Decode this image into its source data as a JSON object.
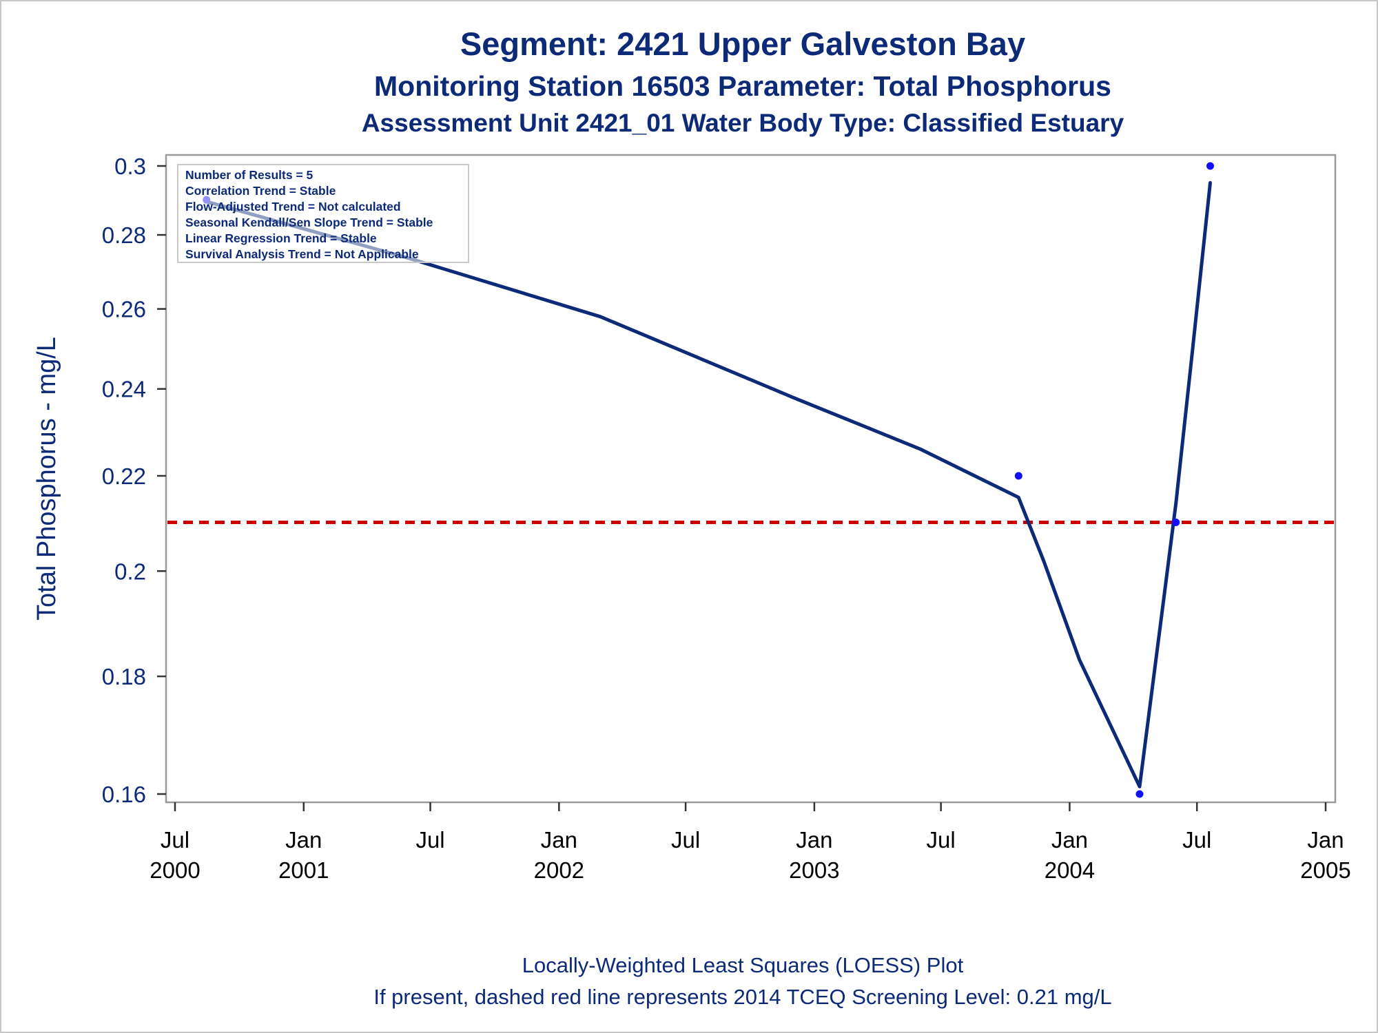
{
  "chart_data": {
    "type": "line",
    "title": "Segment: 2421  Upper Galveston Bay",
    "subtitle": "Monitoring Station 16503 Parameter: Total Phosphorus",
    "subtitle2": "Assessment Unit 2421_01   Water Body Type: Classified Estuary",
    "ylabel": "Total Phosphorus - mg/L",
    "yscale": "log",
    "ylim": [
      0.157,
      0.3
    ],
    "yticks": [
      0.16,
      0.18,
      0.2,
      0.22,
      0.24,
      0.26,
      0.28,
      0.3
    ],
    "ytick_labels": [
      "0.16",
      "0.18",
      "0.2",
      "0.22",
      "0.24",
      "0.26",
      "0.28",
      "0.3"
    ],
    "xlim": [
      "2000-07-01",
      "2005-01-01"
    ],
    "xticks": [
      {
        "date": "2000-07-01",
        "month": "Jul",
        "year": "2000"
      },
      {
        "date": "2001-01-01",
        "month": "Jan",
        "year": "2001"
      },
      {
        "date": "2001-07-01",
        "month": "Jul",
        "year": ""
      },
      {
        "date": "2002-01-01",
        "month": "Jan",
        "year": "2002"
      },
      {
        "date": "2002-07-01",
        "month": "Jul",
        "year": ""
      },
      {
        "date": "2003-01-01",
        "month": "Jan",
        "year": "2003"
      },
      {
        "date": "2003-07-01",
        "month": "Jul",
        "year": ""
      },
      {
        "date": "2004-01-01",
        "month": "Jan",
        "year": "2004"
      },
      {
        "date": "2004-07-01",
        "month": "Jul",
        "year": ""
      },
      {
        "date": "2005-01-01",
        "month": "Jan",
        "year": "2005"
      }
    ],
    "points": [
      {
        "date": "2000-08-15",
        "value": 0.29
      },
      {
        "date": "2003-10-20",
        "value": 0.22
      },
      {
        "date": "2004-04-10",
        "value": 0.16
      },
      {
        "date": "2004-06-01",
        "value": 0.21
      },
      {
        "date": "2004-07-20",
        "value": 0.3
      }
    ],
    "loess_curve": [
      {
        "date": "2000-08-15",
        "value": 0.2895
      },
      {
        "date": "2001-06-01",
        "value": 0.2735
      },
      {
        "date": "2002-03-01",
        "value": 0.258
      },
      {
        "date": "2002-12-01",
        "value": 0.238
      },
      {
        "date": "2003-06-01",
        "value": 0.226
      },
      {
        "date": "2003-10-20",
        "value": 0.2153
      },
      {
        "date": "2003-11-25",
        "value": 0.202
      },
      {
        "date": "2004-01-15",
        "value": 0.183
      },
      {
        "date": "2004-04-10",
        "value": 0.1612
      },
      {
        "date": "2004-05-15",
        "value": 0.195
      },
      {
        "date": "2004-06-01",
        "value": 0.214
      },
      {
        "date": "2004-06-25",
        "value": 0.25
      },
      {
        "date": "2004-07-20",
        "value": 0.295
      }
    ],
    "reference_line": {
      "value": 0.21,
      "color": "#cc0000",
      "style": "dashed"
    },
    "colors": {
      "points": "#1010ff",
      "curve": "#0d2a78",
      "frame": "#999999"
    },
    "stats_box": [
      "Number of Results = 5",
      "Correlation Trend = Stable",
      "Flow-Adjusted Trend = Not calculated",
      "Seasonal Kendall/Sen Slope Trend = Stable",
      "Linear Regression Trend = Stable",
      "Survival Analysis Trend = Not Applicable"
    ],
    "footnotes": [
      "Locally-Weighted Least Squares (LOESS) Plot",
      "If present, dashed red line represents 2014 TCEQ Screening Level: 0.21 mg/L"
    ],
    "grid": false
  }
}
